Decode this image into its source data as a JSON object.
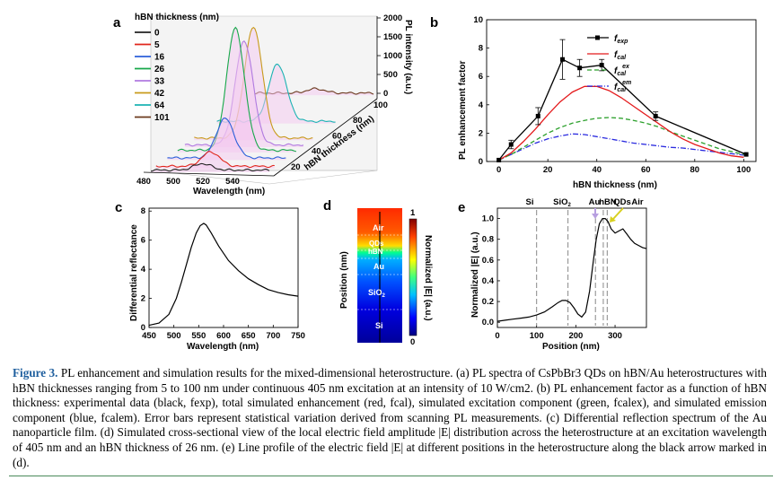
{
  "panels": {
    "a": {
      "letter": "a",
      "legend_title": "hBN thickness (nm)",
      "x_ticks": [
        "480",
        "500",
        "520",
        "540"
      ],
      "x_label": "Wavelength (nm)",
      "z_ticks": [
        "0",
        "500",
        "1000",
        "1500",
        "2000"
      ],
      "z_label": "PL intensity (a.u.)",
      "depth_ticks": [
        "20",
        "40",
        "60",
        "80",
        "100"
      ],
      "depth_label": "hBN thickness (nm)"
    },
    "b": {
      "letter": "b",
      "x_ticks": [
        "0",
        "20",
        "40",
        "60",
        "80",
        "100"
      ],
      "y_ticks": [
        "0",
        "2",
        "4",
        "6",
        "8",
        "10"
      ],
      "x_label": "hBN thickness (nm)",
      "y_label": "PL enhancement factor"
    },
    "c": {
      "letter": "c",
      "x_ticks": [
        "450",
        "500",
        "550",
        "600",
        "650",
        "700",
        "750"
      ],
      "y_ticks": [
        "0",
        "2",
        "4",
        "6",
        "8"
      ],
      "x_label": "Wavelength (nm)",
      "y_label": "Differential reflectance"
    },
    "d": {
      "letter": "d",
      "layers": [
        "Air",
        "QDs",
        "hBN",
        "Au",
        "SiO2",
        "Si"
      ],
      "y_label": "Position (nm)",
      "cbar_max": "1",
      "cbar_min": "0",
      "cbar_label": "Normalized |E| (a.u.)"
    },
    "e": {
      "letter": "e",
      "top_labels": [
        "Si",
        "SiO2",
        "Au",
        "hBN",
        "QDs",
        "Air"
      ],
      "x_ticks": [
        "0",
        "100",
        "200",
        "300"
      ],
      "y_ticks": [
        "0.0",
        "0.2",
        "0.4",
        "0.6",
        "0.8",
        "1.0"
      ],
      "x_label": "Position (nm)",
      "y_label": "Normalized |E| (a.u.)"
    }
  },
  "chart_data": [
    {
      "panel": "a",
      "type": "line",
      "xlabel": "Wavelength (nm)",
      "ylabel": "PL intensity (a.u.)",
      "xlim": [
        480,
        560
      ],
      "ylim": [
        0,
        2000
      ],
      "legend_title": "hBN thickness (nm)",
      "series": [
        {
          "name": "0",
          "color": "#222222",
          "depth": 0,
          "peak": 515,
          "amp": 90
        },
        {
          "name": "5",
          "color": "#e0261c",
          "depth": 5,
          "peak": 517,
          "amp": 200
        },
        {
          "name": "16",
          "color": "#2b5fd9",
          "depth": 16,
          "peak": 519,
          "amp": 550
        },
        {
          "name": "26",
          "color": "#17a84a",
          "depth": 26,
          "peak": 519,
          "amp": 1700
        },
        {
          "name": "33",
          "color": "#b07ae0",
          "depth": 33,
          "peak": 520,
          "amp": 1450
        },
        {
          "name": "42",
          "color": "#c89a1a",
          "depth": 42,
          "peak": 520,
          "amp": 1550
        },
        {
          "name": "64",
          "color": "#1bb3b3",
          "depth": 64,
          "peak": 521,
          "amp": 800
        },
        {
          "name": "101",
          "color": "#6b3a1e",
          "depth": 101,
          "peak": 521,
          "amp": 60
        }
      ]
    },
    {
      "panel": "b",
      "type": "line",
      "xlabel": "hBN thickness (nm)",
      "ylabel": "PL enhancement factor",
      "xlim": [
        -5,
        105
      ],
      "ylim": [
        0,
        10
      ],
      "legend_position": "top-right",
      "series": [
        {
          "name": "f_exp",
          "color": "#000000",
          "style": "solid-square",
          "x": [
            0,
            5,
            16,
            26,
            33,
            42,
            64,
            101
          ],
          "y": [
            0.1,
            1.2,
            3.2,
            7.2,
            6.6,
            6.8,
            3.2,
            0.5
          ],
          "err": [
            0,
            0.3,
            0.6,
            1.4,
            0.6,
            0.4,
            0.3,
            0
          ]
        },
        {
          "name": "f_cal",
          "color": "#e41a1c",
          "style": "solid",
          "x": [
            0,
            5,
            10,
            15,
            20,
            25,
            30,
            35,
            40,
            45,
            50,
            55,
            60,
            65,
            70,
            75,
            80,
            85,
            90,
            95,
            100
          ],
          "y": [
            0.1,
            0.6,
            1.4,
            2.3,
            3.3,
            4.2,
            4.9,
            5.3,
            5.3,
            5.0,
            4.5,
            3.9,
            3.3,
            2.7,
            2.1,
            1.6,
            1.2,
            0.9,
            0.6,
            0.4,
            0.3
          ]
        },
        {
          "name": "f_cal^ex",
          "color": "#2ca02c",
          "style": "dashed",
          "x": [
            0,
            5,
            10,
            15,
            20,
            25,
            30,
            35,
            40,
            45,
            50,
            55,
            60,
            65,
            70,
            75,
            80,
            85,
            90,
            95,
            100
          ],
          "y": [
            0.1,
            0.5,
            1.0,
            1.5,
            2.0,
            2.4,
            2.7,
            2.9,
            3.05,
            3.1,
            3.05,
            2.9,
            2.7,
            2.45,
            2.1,
            1.8,
            1.5,
            1.2,
            0.9,
            0.7,
            0.5
          ]
        },
        {
          "name": "f_cal^em",
          "color": "#2a2adf",
          "style": "dash-dot",
          "x": [
            0,
            5,
            10,
            15,
            20,
            25,
            30,
            35,
            40,
            45,
            50,
            55,
            60,
            65,
            70,
            75,
            80,
            85,
            90,
            95,
            100
          ],
          "y": [
            0.1,
            0.5,
            0.9,
            1.3,
            1.6,
            1.8,
            1.95,
            1.9,
            1.75,
            1.6,
            1.45,
            1.3,
            1.2,
            1.1,
            1.0,
            0.95,
            0.85,
            0.75,
            0.65,
            0.55,
            0.45
          ]
        }
      ]
    },
    {
      "panel": "c",
      "type": "line",
      "xlabel": "Wavelength (nm)",
      "ylabel": "Differential reflectance",
      "xlim": [
        450,
        750
      ],
      "ylim": [
        0,
        8.2
      ],
      "series": [
        {
          "name": "",
          "color": "#000000",
          "x": [
            450,
            470,
            490,
            505,
            515,
            525,
            535,
            545,
            553,
            560,
            565,
            575,
            590,
            610,
            630,
            650,
            670,
            690,
            710,
            730,
            750
          ],
          "y": [
            0.15,
            0.3,
            0.9,
            2.0,
            3.1,
            4.3,
            5.5,
            6.5,
            7.0,
            7.15,
            7.05,
            6.5,
            5.6,
            4.6,
            3.9,
            3.35,
            2.95,
            2.6,
            2.4,
            2.25,
            2.15
          ]
        }
      ]
    },
    {
      "panel": "e",
      "type": "line",
      "xlabel": "Position (nm)",
      "ylabel": "Normalized |E| (a.u.)",
      "xlim": [
        0,
        380
      ],
      "ylim": [
        -0.05,
        1.1
      ],
      "series": [
        {
          "name": "",
          "color": "#000000",
          "x": [
            0,
            20,
            40,
            60,
            80,
            100,
            120,
            140,
            155,
            165,
            175,
            185,
            195,
            205,
            215,
            225,
            235,
            245,
            252,
            260,
            268,
            275,
            282,
            290,
            300,
            310,
            320,
            330,
            340,
            350,
            360,
            370,
            380
          ],
          "y": [
            0.01,
            0.02,
            0.03,
            0.04,
            0.05,
            0.07,
            0.1,
            0.15,
            0.19,
            0.21,
            0.21,
            0.19,
            0.14,
            0.08,
            0.05,
            0.1,
            0.3,
            0.6,
            0.8,
            0.95,
            1.0,
            1.0,
            0.97,
            0.9,
            0.86,
            0.88,
            0.9,
            0.85,
            0.8,
            0.76,
            0.74,
            0.72,
            0.71
          ]
        },
        {
          "name": "",
          "type": "vlines",
          "x": [
            100,
            180,
            250,
            270,
            280
          ]
        }
      ]
    }
  ],
  "caption": {
    "figure": "Figure 3.",
    "text": "PL enhancement and simulation results for the mixed-dimensional heterostructure. (a) PL spectra of CsPbBr3 QDs on hBN/Au heterostructures with hBN thicknesses ranging from 5 to 100 nm under continuous 405 nm excitation at an intensity of 10 W/cm2. (b) PL enhancement factor as a function of hBN thickness: experimental data (black, fexp), total simulated enhancement (red, fcal), simulated excitation component (green, fcalex), and simulated emission component (blue, fcalem). Error bars represent statistical variation derived from scanning PL measurements. (c) Differential reflection spectrum of the Au nanoparticle film. (d) Simulated cross-sectional view of the local electric field amplitude |E| distribution across the heterostructure at an excitation wavelength of 405 nm and an hBN thickness of 26 nm. (e) Line profile of the electric field |E| at different positions in the heterostructure along the black arrow marked in (d)."
  }
}
